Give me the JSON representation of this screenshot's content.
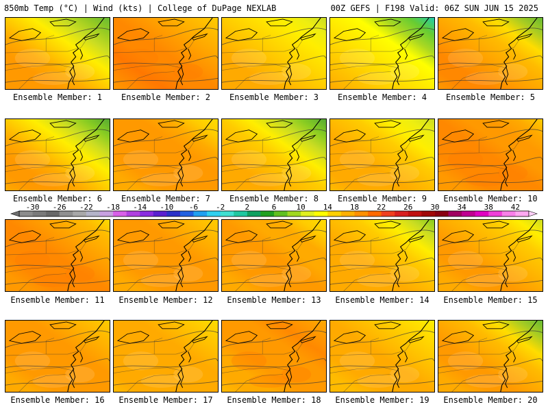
{
  "header": {
    "left": "850mb Temp (°C) | Wind (kts) | College of DuPage NEXLAB",
    "right": "00Z GEFS | F198 Valid: 06Z SUN JUN 15 2025"
  },
  "caption_prefix": "Ensemble Member:",
  "members": [
    1,
    2,
    3,
    4,
    5,
    6,
    7,
    8,
    9,
    10,
    11,
    12,
    13,
    14,
    15,
    16,
    17,
    18,
    19,
    20
  ],
  "colorbar": {
    "ticks": [
      "-30",
      "-26",
      "-22",
      "-18",
      "-14",
      "-10",
      "-6",
      "-2",
      "2",
      "6",
      "10",
      "14",
      "18",
      "22",
      "26",
      "30",
      "34",
      "38",
      "42"
    ],
    "colors": [
      "#8c8c8c",
      "#7a7a7a",
      "#686868",
      "#909090",
      "#a8a8a8",
      "#b4b4c8",
      "#c8a0e0",
      "#d860e8",
      "#b040e0",
      "#8a2ce0",
      "#5a20d0",
      "#2a30c8",
      "#2060e0",
      "#20a0f0",
      "#30d0f0",
      "#40e0d0",
      "#20c8a0",
      "#10a060",
      "#20a020",
      "#60c020",
      "#a0d820",
      "#e0f020",
      "#ffff00",
      "#ffd000",
      "#ffb000",
      "#ff9000",
      "#ff6a00",
      "#f04020",
      "#d82020",
      "#c01010",
      "#a00808",
      "#880010",
      "#a00060",
      "#c00090",
      "#e000c0",
      "#f040d8",
      "#f880e8",
      "#ffa8f0"
    ]
  },
  "map_fields": [
    {
      "field": [
        "#66bb33",
        "#99cc22",
        "#ccdd22",
        "#ffee00",
        "#ffcc00",
        "#ffaa00",
        "#ff9900",
        "#ff9900",
        "#ff9900"
      ],
      "hot": false
    },
    {
      "field": [
        "#ffcc00",
        "#ffbb00",
        "#ffaa00",
        "#ff9900",
        "#ff8800",
        "#ff8800",
        "#ff7700",
        "#ff8800",
        "#ff9900"
      ],
      "hot": true
    },
    {
      "field": [
        "#ccdd22",
        "#eeee11",
        "#ffee00",
        "#ffdd00",
        "#ffcc00",
        "#ffbb00",
        "#ffaa00",
        "#ffaa00",
        "#ffaa00"
      ],
      "hot": false
    },
    {
      "field": [
        "#22ccaa",
        "#66cc33",
        "#aad822",
        "#ffff00",
        "#ffee00",
        "#ffdd00",
        "#ffcc00",
        "#ffbb00",
        "#ffaa00"
      ],
      "hot": false
    },
    {
      "field": [
        "#66bb33",
        "#aacc22",
        "#ffdd00",
        "#ffbb00",
        "#ffaa00",
        "#ff9900",
        "#ff8800",
        "#ff8800",
        "#ff9900"
      ],
      "hot": false
    },
    {
      "field": [
        "#55aa33",
        "#88cc22",
        "#ccdd22",
        "#ffee00",
        "#ffcc00",
        "#ffaa00",
        "#ff9900",
        "#ff9900",
        "#ffaa00"
      ],
      "hot": false
    },
    {
      "field": [
        "#ffdd00",
        "#ffcc00",
        "#ffaa00",
        "#ff9900",
        "#ff9900",
        "#ff9900",
        "#ff9900",
        "#ffaa00",
        "#ffaa00"
      ],
      "hot": false
    },
    {
      "field": [
        "#55aa33",
        "#88cc22",
        "#ccdd22",
        "#ffee00",
        "#ffcc00",
        "#ffbb00",
        "#ffaa00",
        "#ffaa00",
        "#ffaa00"
      ],
      "hot": false
    },
    {
      "field": [
        "#ccdd22",
        "#eeee11",
        "#ffee00",
        "#ffcc00",
        "#ffbb00",
        "#ffaa00",
        "#ffaa00",
        "#ffaa00",
        "#ffbb00"
      ],
      "hot": false
    },
    {
      "field": [
        "#ffcc00",
        "#ffaa00",
        "#ff9900",
        "#ff9900",
        "#ff8800",
        "#ff8800",
        "#ff8800",
        "#ff9900",
        "#ff9900"
      ],
      "hot": true
    },
    {
      "field": [
        "#ffdd00",
        "#ffbb00",
        "#ffaa00",
        "#ff9900",
        "#ff8800",
        "#ff8800",
        "#ff8800",
        "#ff9900",
        "#ff9900"
      ],
      "hot": true
    },
    {
      "field": [
        "#ffcc00",
        "#ffbb00",
        "#ffaa00",
        "#ff9900",
        "#ff9900",
        "#ff9900",
        "#ff9900",
        "#ffaa00",
        "#ffaa00"
      ],
      "hot": false
    },
    {
      "field": [
        "#ffdd00",
        "#ffcc00",
        "#ffaa00",
        "#ffaa00",
        "#ff9900",
        "#ff9900",
        "#ff9900",
        "#ffaa00",
        "#ffaa00"
      ],
      "hot": false
    },
    {
      "field": [
        "#88cc22",
        "#ccdd22",
        "#ffee00",
        "#ffcc00",
        "#ffbb00",
        "#ffaa00",
        "#ffaa00",
        "#ffaa00",
        "#ffaa00"
      ],
      "hot": false
    },
    {
      "field": [
        "#ccdd22",
        "#ffee00",
        "#ffcc00",
        "#ffbb00",
        "#ffaa00",
        "#ff9900",
        "#ff9900",
        "#ffaa00",
        "#ffaa00"
      ],
      "hot": false
    },
    {
      "field": [
        "#ffcc00",
        "#ffbb00",
        "#ffaa00",
        "#ff9900",
        "#ff9900",
        "#ff9900",
        "#ff9900",
        "#ffaa00",
        "#ffaa00"
      ],
      "hot": false
    },
    {
      "field": [
        "#ffdd00",
        "#ffcc00",
        "#ffbb00",
        "#ffaa00",
        "#ffaa00",
        "#ffaa00",
        "#ffaa00",
        "#ffaa00",
        "#ffbb00"
      ],
      "hot": false
    },
    {
      "field": [
        "#ffaa00",
        "#ff9900",
        "#ff8800",
        "#ff9900",
        "#ff9900",
        "#ff9900",
        "#ffaa00",
        "#ffaa00",
        "#ffbb00"
      ],
      "hot": true
    },
    {
      "field": [
        "#ffee00",
        "#ffdd00",
        "#ffcc00",
        "#ffbb00",
        "#ffaa00",
        "#ffaa00",
        "#ffaa00",
        "#ffbb00",
        "#ffbb00"
      ],
      "hot": false
    },
    {
      "field": [
        "#66bb33",
        "#aacc22",
        "#ffdd00",
        "#ffbb00",
        "#ffaa00",
        "#ff9900",
        "#ff9900",
        "#ffaa00",
        "#ffaa00"
      ],
      "hot": false
    }
  ]
}
